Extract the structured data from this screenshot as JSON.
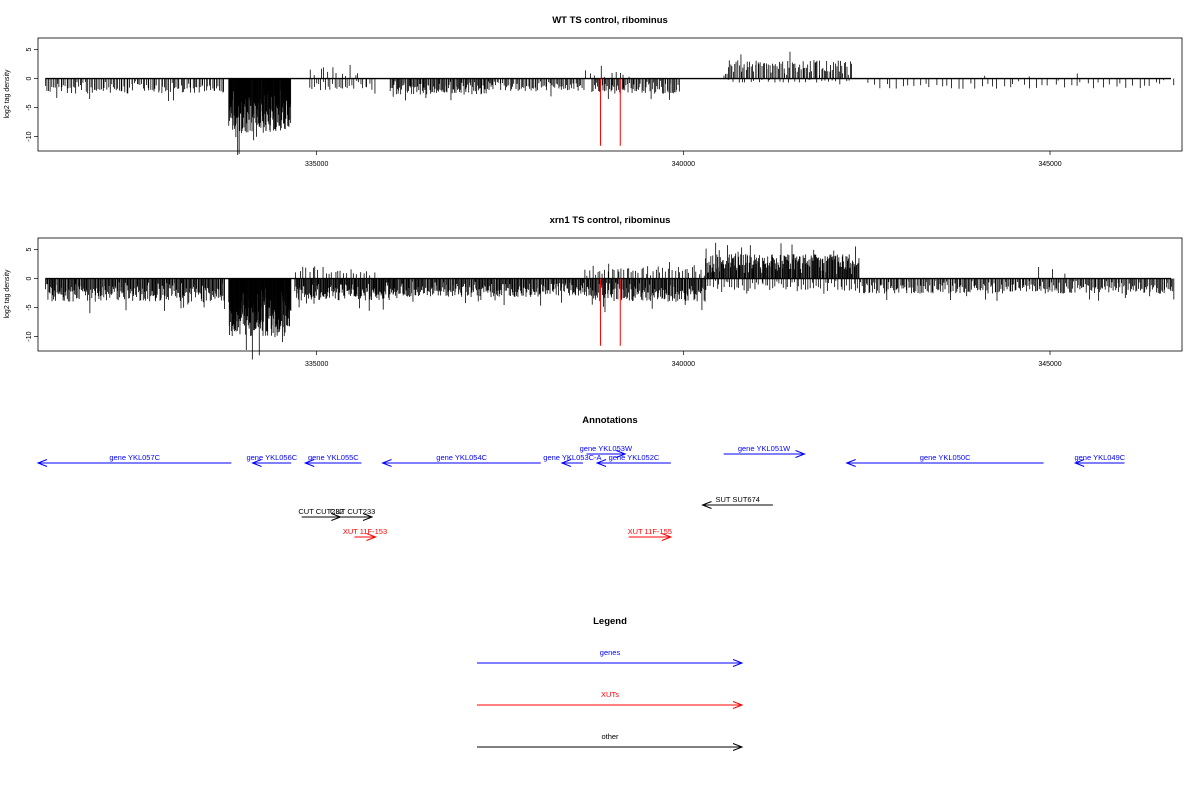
{
  "chart_data": [
    {
      "type": "bar",
      "title": "WT TS control, ribominus",
      "xlabel": "",
      "ylabel": "log2 tag density",
      "xlim": [
        331200,
        346800
      ],
      "ylim": [
        -12.5,
        7
      ],
      "xticks": [
        335000,
        340000,
        345000
      ],
      "yticks": [
        5,
        0,
        -5,
        -10
      ],
      "marker_lines": [
        338870,
        339140
      ],
      "segments": [
        {
          "from": 331300,
          "to": 333750,
          "sign": -1,
          "mag": 2.6,
          "n": 120,
          "seed": 11
        },
        {
          "from": 333800,
          "to": 334650,
          "sign": -1,
          "mag": 9.5,
          "n": 160,
          "seed": 12
        },
        {
          "from": 334900,
          "to": 335600,
          "sign": 1,
          "mag": 2.4,
          "n": 12,
          "seed": 13
        },
        {
          "from": 334900,
          "to": 335800,
          "sign": -1,
          "mag": 2.2,
          "n": 30,
          "seed": 14
        },
        {
          "from": 336000,
          "to": 337400,
          "sign": -1,
          "mag": 2.8,
          "n": 110,
          "seed": 15
        },
        {
          "from": 337400,
          "to": 338650,
          "sign": -1,
          "mag": 2.2,
          "n": 70,
          "seed": 16
        },
        {
          "from": 338750,
          "to": 339950,
          "sign": -1,
          "mag": 2.6,
          "n": 80,
          "seed": 17
        },
        {
          "from": 338650,
          "to": 339300,
          "sign": 1,
          "mag": 1.5,
          "n": 10,
          "seed": 18
        },
        {
          "from": 340550,
          "to": 342300,
          "sign": 1,
          "mag": 3.2,
          "n": 95,
          "seed": 19
        },
        {
          "from": 340600,
          "to": 342300,
          "sign": -1,
          "mag": 0.7,
          "n": 30,
          "seed": 20
        },
        {
          "from": 342500,
          "to": 346700,
          "sign": -1,
          "mag": 1.8,
          "n": 55,
          "seed": 21
        },
        {
          "from": 344000,
          "to": 345500,
          "sign": 1,
          "mag": 1.0,
          "n": 3,
          "seed": 22
        }
      ]
    },
    {
      "type": "bar",
      "title": "xrn1 TS control, ribominus",
      "xlabel": "",
      "ylabel": "log2 tag density",
      "xlim": [
        331200,
        346800
      ],
      "ylim": [
        -12.5,
        7
      ],
      "xticks": [
        335000,
        340000,
        345000
      ],
      "yticks": [
        5,
        0,
        -5,
        -10
      ],
      "marker_lines": [
        338870,
        339140
      ],
      "segments": [
        {
          "from": 331300,
          "to": 333750,
          "sign": -1,
          "mag": 4.0,
          "n": 230,
          "seed": 31
        },
        {
          "from": 333800,
          "to": 334650,
          "sign": -1,
          "mag": 10.0,
          "n": 180,
          "seed": 32
        },
        {
          "from": 334700,
          "to": 335800,
          "sign": 1,
          "mag": 2.2,
          "n": 25,
          "seed": 33
        },
        {
          "from": 334700,
          "to": 336100,
          "sign": -1,
          "mag": 3.8,
          "n": 150,
          "seed": 34
        },
        {
          "from": 336100,
          "to": 338650,
          "sign": -1,
          "mag": 3.2,
          "n": 230,
          "seed": 35
        },
        {
          "from": 338650,
          "to": 340300,
          "sign": -1,
          "mag": 4.0,
          "n": 160,
          "seed": 36
        },
        {
          "from": 338650,
          "to": 340300,
          "sign": 1,
          "mag": 2.0,
          "n": 50,
          "seed": 37
        },
        {
          "from": 340300,
          "to": 342400,
          "sign": 1,
          "mag": 4.2,
          "n": 220,
          "seed": 38
        },
        {
          "from": 340300,
          "to": 342400,
          "sign": -1,
          "mag": 2.2,
          "n": 70,
          "seed": 39
        },
        {
          "from": 342400,
          "to": 346700,
          "sign": -1,
          "mag": 2.6,
          "n": 280,
          "seed": 40
        },
        {
          "from": 344800,
          "to": 345400,
          "sign": 1,
          "mag": 2.0,
          "n": 3,
          "seed": 41
        }
      ]
    }
  ],
  "annotations": {
    "title": "Annotations",
    "xlim": [
      331200,
      346800
    ],
    "features": [
      {
        "label": "gene YKL057C",
        "from": 331200,
        "to": 333950,
        "dir": "left",
        "color": "#0000ff",
        "row": 0
      },
      {
        "label": "gene YKL056C",
        "from": 334250,
        "to": 334800,
        "dir": "left",
        "color": "#0000ff",
        "row": 0
      },
      {
        "label": "gene YKL055C",
        "from": 335000,
        "to": 335800,
        "dir": "left",
        "color": "#0000ff",
        "row": 0
      },
      {
        "label": "gene YKL054C",
        "from": 336100,
        "to": 338350,
        "dir": "left",
        "color": "#0000ff",
        "row": 0
      },
      {
        "label": "gene YKL053C-A",
        "from": 338650,
        "to": 338950,
        "dir": "left",
        "color": "#0000ff",
        "row": 0
      },
      {
        "label": "gene YKL053W",
        "from": 339000,
        "to": 339550,
        "dir": "right",
        "color": "#0000ff",
        "row": -1
      },
      {
        "label": "gene YKL052C",
        "from": 339150,
        "to": 340200,
        "dir": "left",
        "color": "#0000ff",
        "row": 0
      },
      {
        "label": "gene YKL051W",
        "from": 340950,
        "to": 342100,
        "dir": "right",
        "color": "#0000ff",
        "row": -1
      },
      {
        "label": "gene YKL050C",
        "from": 342700,
        "to": 345500,
        "dir": "left",
        "color": "#0000ff",
        "row": 0
      },
      {
        "label": "gene YKL049C",
        "from": 345950,
        "to": 346650,
        "dir": "left",
        "color": "#0000ff",
        "row": 0
      },
      {
        "label": "SUT SUT674",
        "from": 340650,
        "to": 341650,
        "dir": "left",
        "color": "#000000",
        "row": 1
      },
      {
        "label": "CUT CUT232",
        "from": 334950,
        "to": 335500,
        "dir": "right",
        "color": "#000000",
        "row": 2
      },
      {
        "label": "CUT CUT233",
        "from": 335400,
        "to": 335950,
        "dir": "right",
        "color": "#000000",
        "row": 2
      },
      {
        "label": "XUT 11F-153",
        "from": 335700,
        "to": 336000,
        "dir": "right",
        "color": "#ff0000",
        "row": 3
      },
      {
        "label": "XUT 11F-155",
        "from": 339600,
        "to": 340200,
        "dir": "right",
        "color": "#ff0000",
        "row": 3
      }
    ]
  },
  "legend": {
    "title": "Legend",
    "items": [
      {
        "label": "genes",
        "color": "#0000ff"
      },
      {
        "label": "XUTs",
        "color": "#ff0000"
      },
      {
        "label": "other",
        "color": "#000000"
      }
    ]
  }
}
